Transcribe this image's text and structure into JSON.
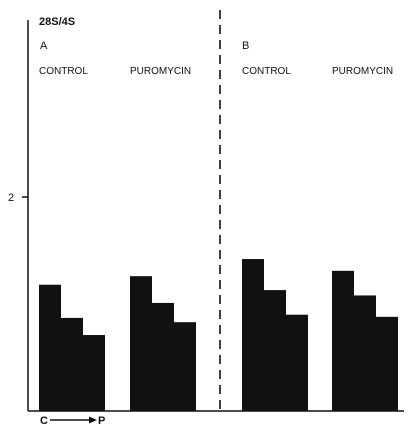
{
  "chart_data": {
    "type": "bar",
    "ylabel": "28S/4S",
    "yticks": [
      2
    ],
    "ylim": [
      0,
      2.9
    ],
    "grid": false,
    "direction_label": {
      "from": "C",
      "to": "P"
    },
    "panels": [
      {
        "panel_label": "A",
        "groups": [
          {
            "label": "CONTROL",
            "values": [
              1.18,
              0.87,
              0.71
            ]
          },
          {
            "label": "PUROMYCIN",
            "values": [
              1.26,
              1.01,
              0.83
            ]
          }
        ]
      },
      {
        "panel_label": "B",
        "groups": [
          {
            "label": "CONTROL",
            "values": [
              1.42,
              1.13,
              0.9
            ]
          },
          {
            "label": "PUROMYCIN",
            "values": [
              1.31,
              1.08,
              0.88
            ]
          }
        ]
      }
    ]
  }
}
